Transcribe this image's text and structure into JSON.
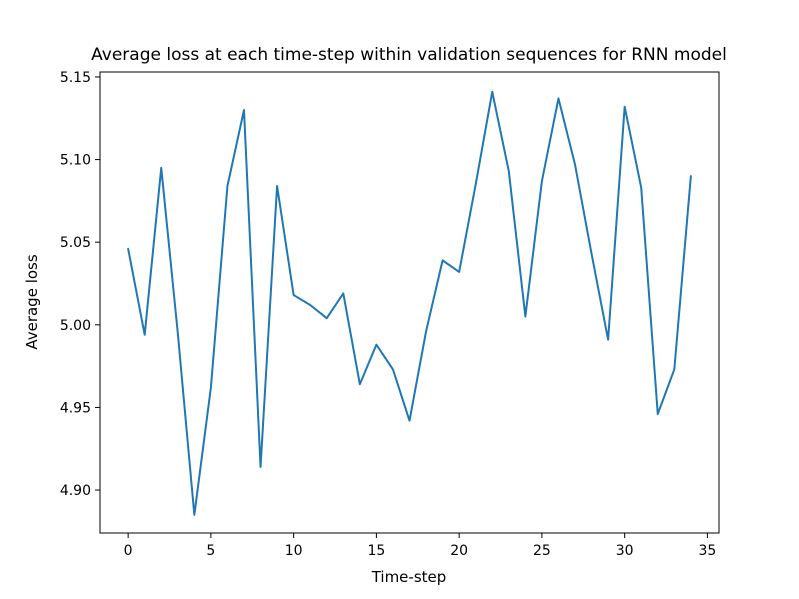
{
  "chart_data": {
    "type": "line",
    "title": "Average loss at each time-step within validation sequences for RNN model",
    "xlabel": "Time-step",
    "ylabel": "Average loss",
    "xlim": [
      -1.7,
      35.7
    ],
    "ylim": [
      4.874,
      5.153
    ],
    "x_ticks": [
      0,
      5,
      10,
      15,
      20,
      25,
      30,
      35
    ],
    "x_tick_labels": [
      "0",
      "5",
      "10",
      "15",
      "20",
      "25",
      "30",
      "35"
    ],
    "y_ticks": [
      4.9,
      4.95,
      5.0,
      5.05,
      5.1,
      5.15
    ],
    "y_tick_labels": [
      "4.90",
      "4.95",
      "5.00",
      "5.05",
      "5.10",
      "5.15"
    ],
    "grid": false,
    "series": [
      {
        "color": "#1f77b4",
        "x": [
          0,
          1,
          2,
          3,
          4,
          5,
          6,
          7,
          8,
          9,
          10,
          11,
          12,
          13,
          14,
          15,
          16,
          17,
          18,
          19,
          20,
          21,
          22,
          23,
          24,
          25,
          26,
          27,
          28,
          29,
          30,
          31,
          32,
          33,
          34
        ],
        "values": [
          5.046,
          4.994,
          5.095,
          4.995,
          4.885,
          4.962,
          5.084,
          5.13,
          4.914,
          5.084,
          5.018,
          5.012,
          5.004,
          5.019,
          4.964,
          4.988,
          4.973,
          4.942,
          4.996,
          5.039,
          5.032,
          5.085,
          5.141,
          5.093,
          5.005,
          5.087,
          5.137,
          5.097,
          5.043,
          4.991,
          5.132,
          5.083,
          4.946,
          4.973,
          5.09
        ]
      }
    ]
  }
}
